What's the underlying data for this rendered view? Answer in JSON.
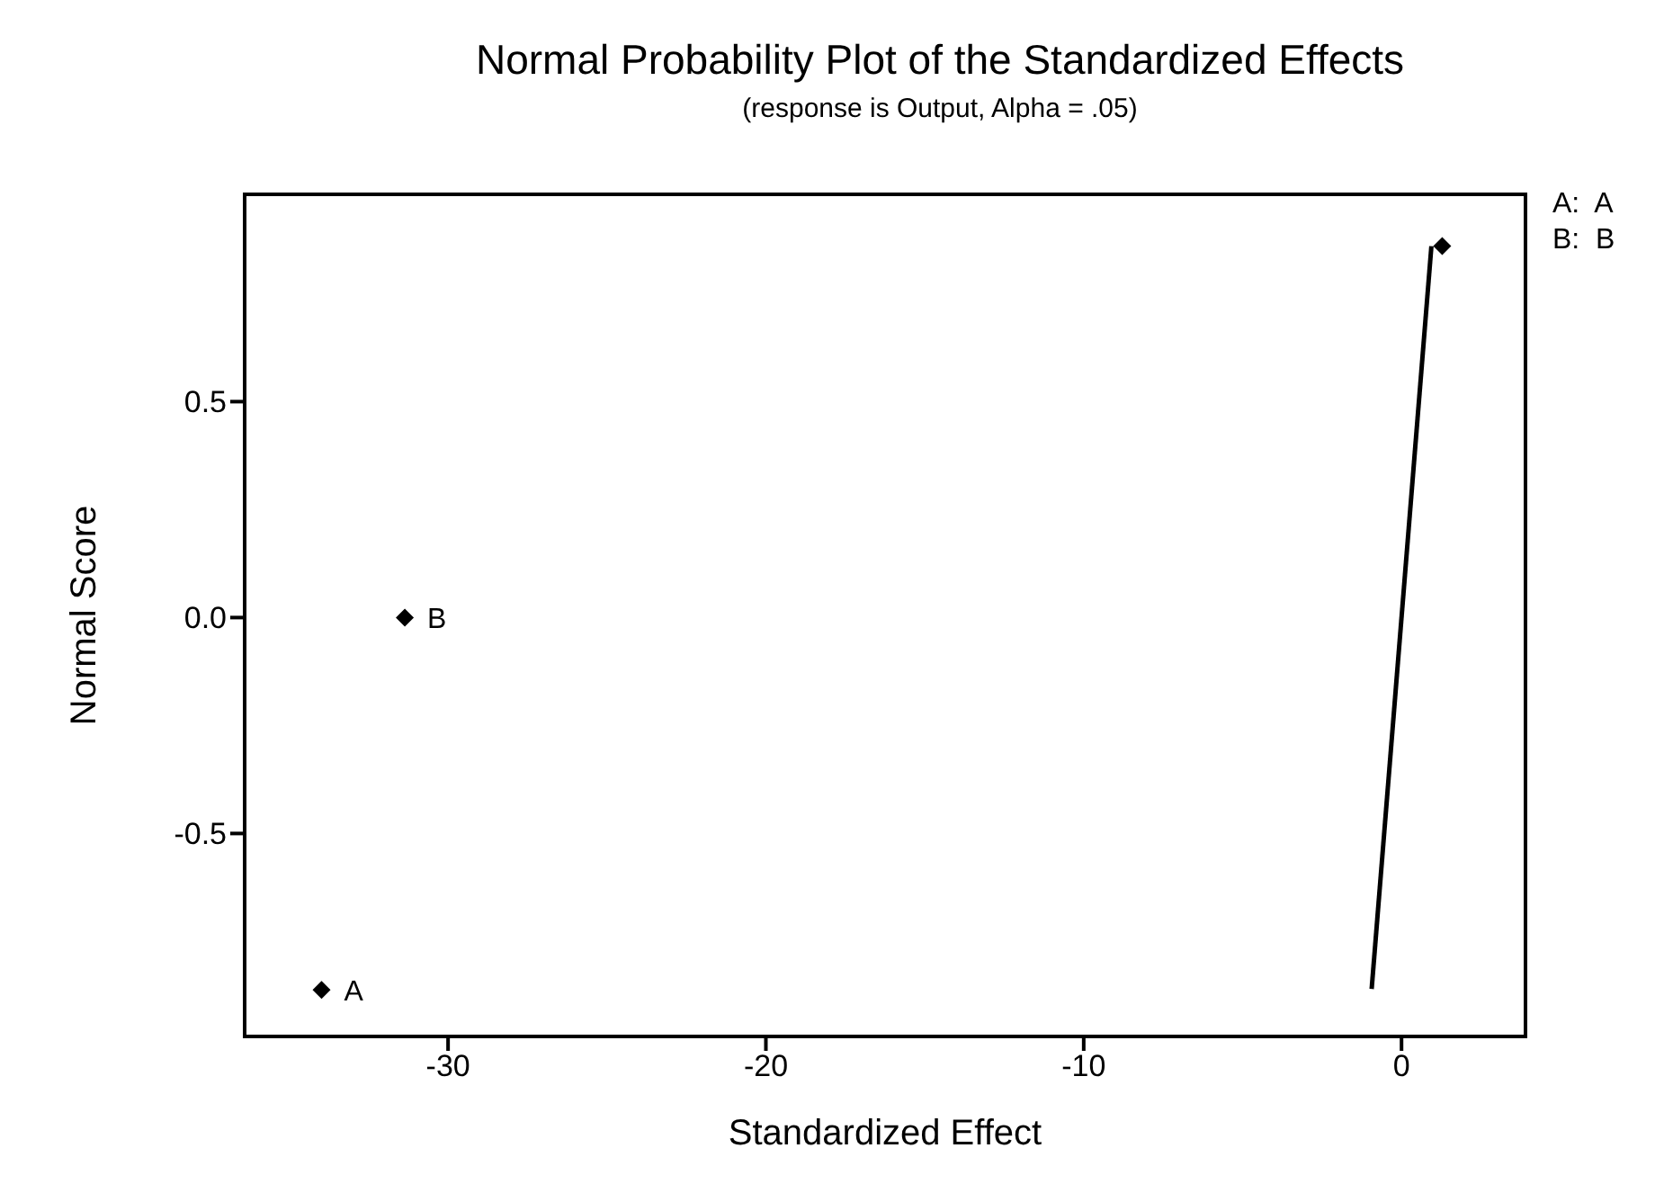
{
  "chart_data": {
    "type": "scatter",
    "title": "Normal Probability Plot of the Standardized Effects",
    "subtitle": "(response is Output, Alpha = .05)",
    "xlabel": "Standardized Effect",
    "ylabel": "Normal Score",
    "xlim": [
      -36.4,
      3.9
    ],
    "xticks": [
      -30,
      -20,
      -10,
      0
    ],
    "ylim": [
      -0.97,
      0.98
    ],
    "yticks": [
      {
        "value": -0.5,
        "label": "-0.5"
      },
      {
        "value": 0,
        "label": "0.0"
      },
      {
        "value": 0.5,
        "label": "0.5"
      }
    ],
    "marker": "diamond",
    "series": [
      {
        "color": "#000000",
        "x": [
          -33.98,
          -31.36,
          1.28
        ],
        "values": [
          -0.862,
          0,
          0.86
        ],
        "value_labels": [
          "A",
          "B",
          null
        ]
      },
      {
        "type": "line",
        "color": "#000000",
        "x": [
          -0.94,
          0.94
        ],
        "values": [
          -0.86,
          0.86
        ],
        "marker": "none",
        "line_style": "solid"
      }
    ],
    "annotations": [
      "A:  A",
      "B:  B"
    ]
  }
}
